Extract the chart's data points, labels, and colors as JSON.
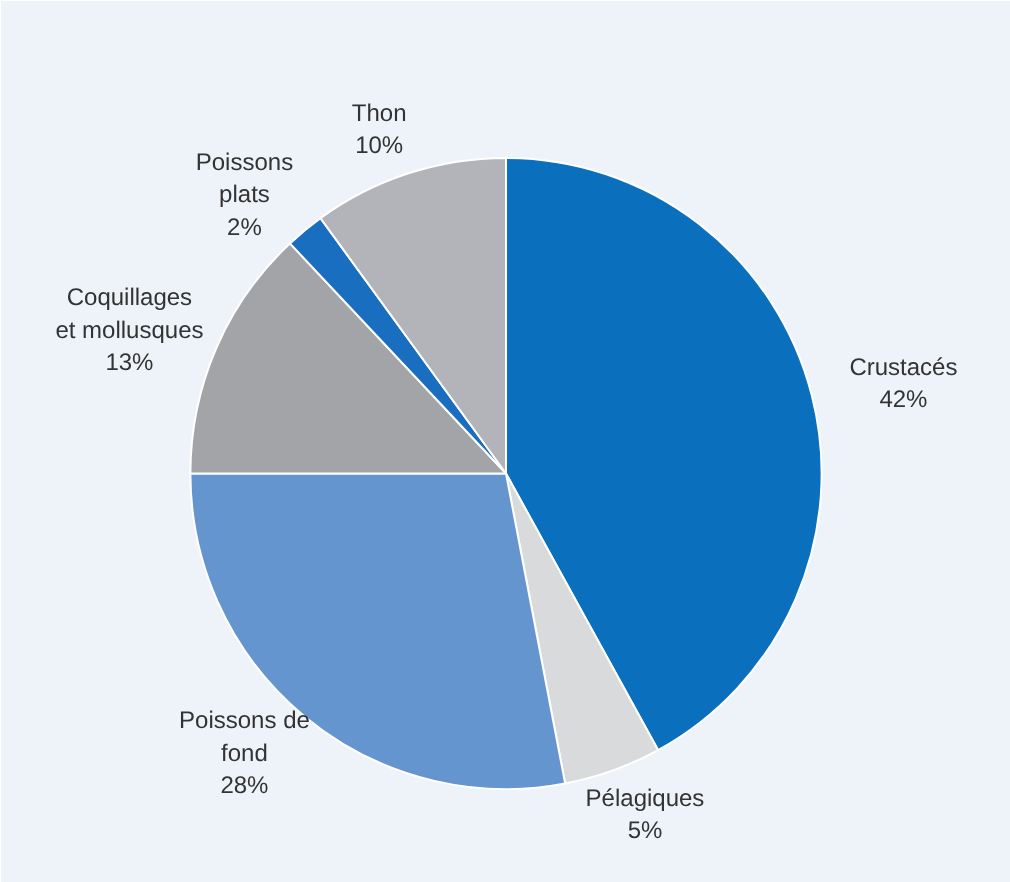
{
  "chart_data": {
    "type": "pie",
    "categories": [
      "Crustacés",
      "Pélagiques",
      "Poissons de\nfond",
      "Coquillages\net mollusques",
      "Poissons\nplats",
      "Thon"
    ],
    "values": [
      42,
      5,
      28,
      13,
      2,
      10
    ],
    "value_labels": [
      "42%",
      "5%",
      "28%",
      "13%",
      "2%",
      "10%"
    ],
    "colors": [
      "#0a6fbd",
      "#d9dadc",
      "#6495cf",
      "#a3a4a8",
      "#1a6ec0",
      "#b3b4b9"
    ]
  }
}
